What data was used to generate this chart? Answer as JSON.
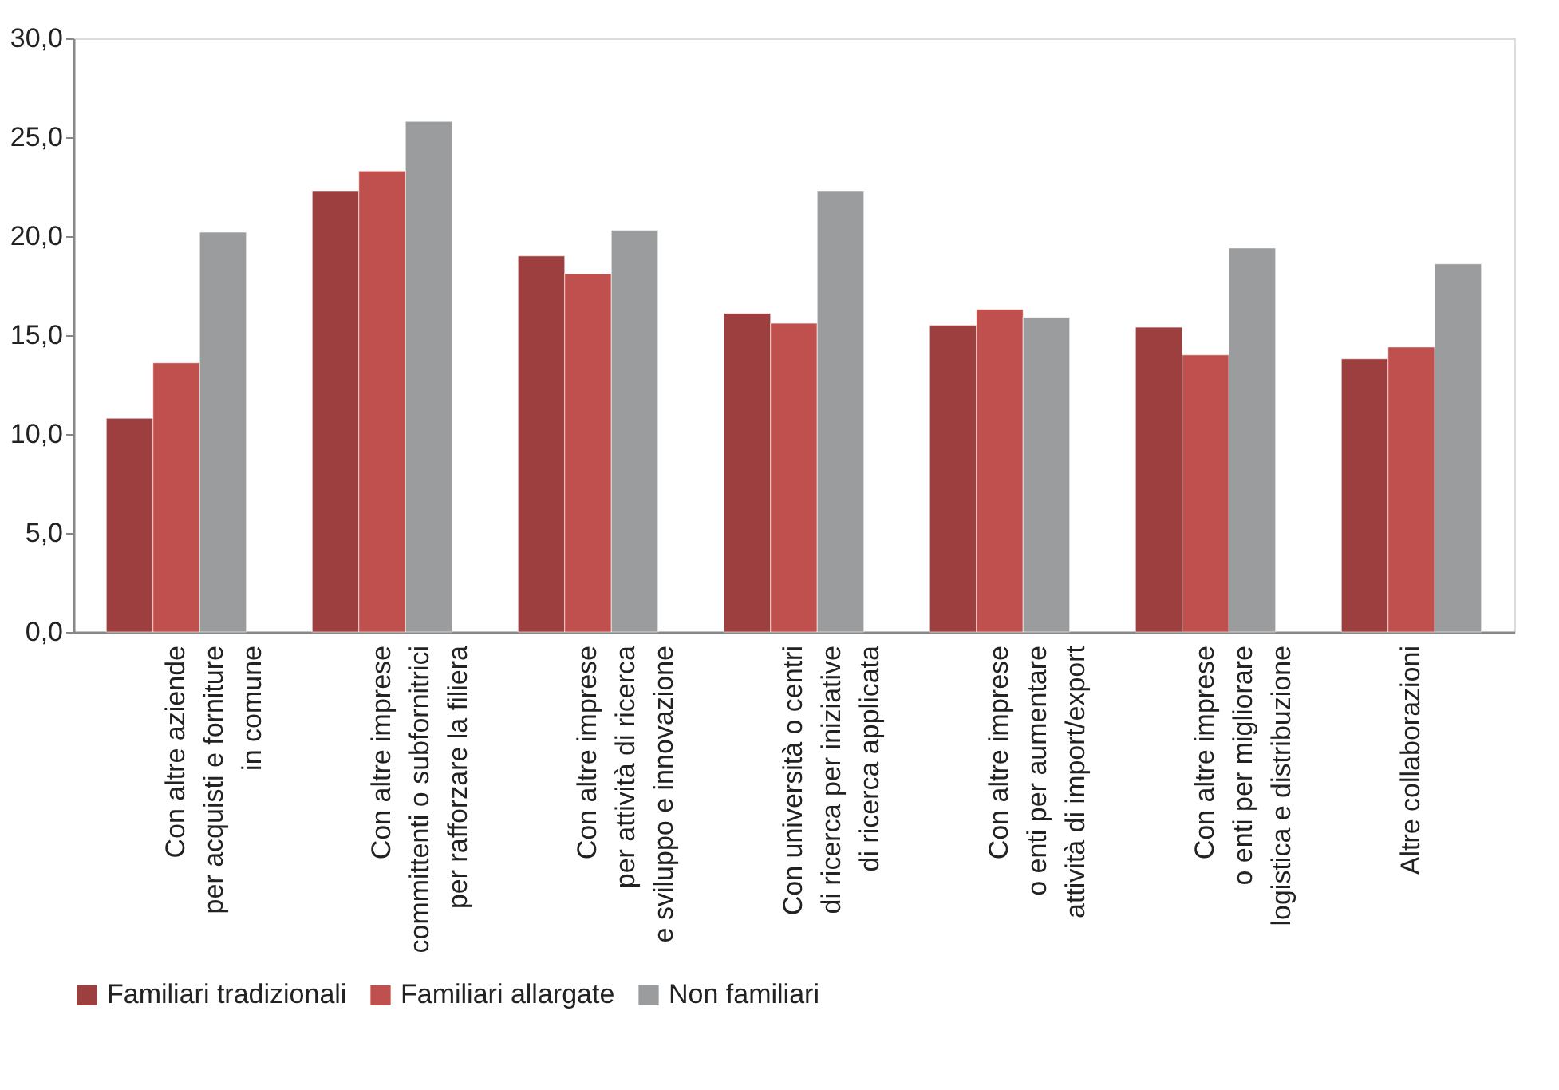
{
  "chart_data": {
    "type": "bar",
    "categories": [
      "Con altre aziende\nper acquisti e forniture\nin comune",
      "Con altre imprese\ncommittenti o subfornitrici\nper rafforzare la filiera",
      "Con altre imprese\nper attività di ricerca\ne sviluppo e innovazione",
      "Con università o centri\ndi ricerca per iniziative\ndi ricerca applicata",
      "Con altre imprese\no enti per aumentare\nattività di import/export",
      "Con altre imprese\no enti per migliorare\nlogistica e distribuzione",
      "Altre collaborazioni"
    ],
    "series": [
      {
        "name": "Familiari tradizionali",
        "color": "#9e3f3f",
        "values": [
          10.8,
          22.3,
          19.0,
          16.1,
          15.5,
          15.4,
          13.8
        ]
      },
      {
        "name": "Familiari allargate",
        "color": "#c0504d",
        "values": [
          13.6,
          23.3,
          18.1,
          15.6,
          16.3,
          14.0,
          14.4
        ]
      },
      {
        "name": "Non familiari",
        "color": "#9b9c9e",
        "values": [
          20.2,
          25.8,
          20.3,
          22.3,
          15.9,
          19.4,
          18.6
        ]
      }
    ],
    "ylim": [
      0,
      30
    ],
    "yticks": [
      {
        "value": 0,
        "label": "0,0"
      },
      {
        "value": 5,
        "label": "5,0"
      },
      {
        "value": 10,
        "label": "10,0"
      },
      {
        "value": 15,
        "label": "15,0"
      },
      {
        "value": 20,
        "label": "20,0"
      },
      {
        "value": 25,
        "label": "25,0"
      },
      {
        "value": 30,
        "label": "30,0"
      }
    ],
    "grid": false,
    "legend": "bottom"
  }
}
